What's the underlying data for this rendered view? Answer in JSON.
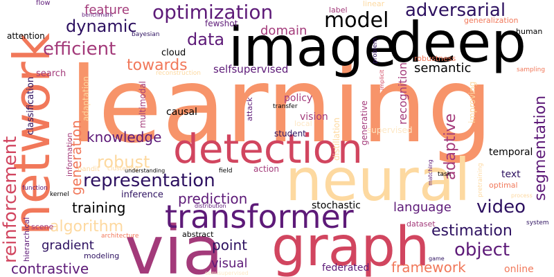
{
  "palette": {
    "black": "#000000",
    "navy": "#2d1160",
    "plum": "#5d1a78",
    "magenta": "#a33a7a",
    "rose": "#d1455f",
    "coral": "#f1785a",
    "peach": "#f7946a",
    "sand": "#fdd9a0",
    "pale": "#fde8c6"
  },
  "words": [
    {
      "text": "learning"
    },
    {
      "text": "deep"
    },
    {
      "text": "image"
    },
    {
      "text": "network"
    },
    {
      "text": "neural"
    },
    {
      "text": "detection"
    },
    {
      "text": "graph"
    },
    {
      "text": "via"
    },
    {
      "text": "transformer"
    },
    {
      "text": "optimization"
    },
    {
      "text": "adversarial"
    },
    {
      "text": "model"
    },
    {
      "text": "dynamic"
    },
    {
      "text": "data"
    },
    {
      "text": "feature"
    },
    {
      "text": "efficient"
    },
    {
      "text": "domain"
    },
    {
      "text": "towards"
    },
    {
      "text": "reinforcement"
    },
    {
      "text": "representation"
    },
    {
      "text": "robust"
    },
    {
      "text": "knowledge"
    },
    {
      "text": "generation"
    },
    {
      "text": "segmentation"
    },
    {
      "text": "adaptive"
    },
    {
      "text": "semantic"
    },
    {
      "text": "recognition"
    },
    {
      "text": "selfsupervised"
    },
    {
      "text": "prediction"
    },
    {
      "text": "training"
    },
    {
      "text": "video"
    },
    {
      "text": "language"
    },
    {
      "text": "algorithm"
    },
    {
      "text": "estimation"
    },
    {
      "text": "object"
    },
    {
      "text": "gradient"
    },
    {
      "text": "point"
    },
    {
      "text": "contrastive"
    },
    {
      "text": "visual"
    },
    {
      "text": "framework"
    },
    {
      "text": "stochastic"
    },
    {
      "text": "federated"
    },
    {
      "text": "online"
    },
    {
      "text": "causal"
    },
    {
      "text": "vision"
    },
    {
      "text": "policy"
    },
    {
      "text": "inference"
    },
    {
      "text": "classification"
    },
    {
      "text": "attention"
    },
    {
      "text": "fewshot"
    },
    {
      "text": "bayesian"
    },
    {
      "text": "cloud"
    },
    {
      "text": "search"
    },
    {
      "text": "multimodal"
    },
    {
      "text": "information"
    },
    {
      "text": "adaptation"
    },
    {
      "text": "distillation"
    },
    {
      "text": "generative"
    },
    {
      "text": "improving"
    },
    {
      "text": "temporal"
    },
    {
      "text": "text"
    },
    {
      "text": "optimal"
    },
    {
      "text": "human"
    },
    {
      "text": "generalization"
    },
    {
      "text": "robustness"
    },
    {
      "text": "label"
    },
    {
      "text": "linear"
    },
    {
      "text": "flow"
    },
    {
      "text": "benchmark"
    },
    {
      "text": "problem"
    },
    {
      "text": "implicit"
    },
    {
      "text": "reconstruction"
    },
    {
      "text": "sampling"
    },
    {
      "text": "attack"
    },
    {
      "text": "transfer"
    },
    {
      "text": "student"
    },
    {
      "text": "supervised"
    },
    {
      "text": "local"
    },
    {
      "text": "action"
    },
    {
      "text": "field"
    },
    {
      "text": "task"
    },
    {
      "text": "matching"
    },
    {
      "text": "bandit"
    },
    {
      "text": "clustering"
    },
    {
      "text": "understanding"
    },
    {
      "text": "function"
    },
    {
      "text": "kernel"
    },
    {
      "text": "hierarchical"
    },
    {
      "text": "scene"
    },
    {
      "text": "architecture"
    },
    {
      "text": "modeling"
    },
    {
      "text": "abstract"
    },
    {
      "text": "distribution"
    },
    {
      "text": "dataset"
    },
    {
      "text": "pretraining"
    },
    {
      "text": "process"
    },
    {
      "text": "system"
    },
    {
      "text": "game"
    },
    {
      "text": "semisupervised"
    }
  ]
}
